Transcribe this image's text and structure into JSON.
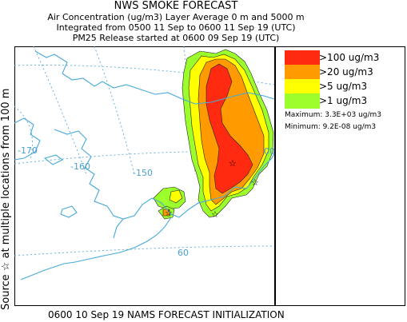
{
  "title": "NWS SMOKE FORECAST",
  "subtitle_lines": [
    "Air Concentration (ug/m3) Layer Average    0 m and  5000 m",
    "Integrated from 0500 11 Sep to 0600 11 Sep 19 (UTC)",
    "PM25 Release started at 0600 09 Sep 19 (UTC)"
  ],
  "footer": "0600 10 Sep 19 NAMS FORECAST INITIALIZATION",
  "side_label": "Source ☆  at multiple locations   from  100 m",
  "grid_labels": {
    "lon_170": "-170",
    "lon_160": "-160",
    "lon_150": "-150",
    "lat_60": "60",
    "edge_label": "00"
  },
  "legend": {
    "items": [
      {
        "label": ">100 ug/m3",
        "color": "#ff2a10"
      },
      {
        "label": ">20 ug/m3",
        "color": "#ff9a00"
      },
      {
        "label": ">5 ug/m3",
        "color": "#ffff00"
      },
      {
        "label": ">1 ug/m3",
        "color": "#9cff2b"
      }
    ],
    "maximum": "Maximum: 3.3E+03 ug/m3",
    "minimum": "Minimum: 9.2E-08 ug/m3"
  },
  "colors": {
    "coast": "#47a9d8",
    "grid": "#5aaadc",
    "level_100": "#ff2a10",
    "level_20": "#ff9a00",
    "level_5": "#ffff00",
    "level_1": "#9cff2b"
  }
}
